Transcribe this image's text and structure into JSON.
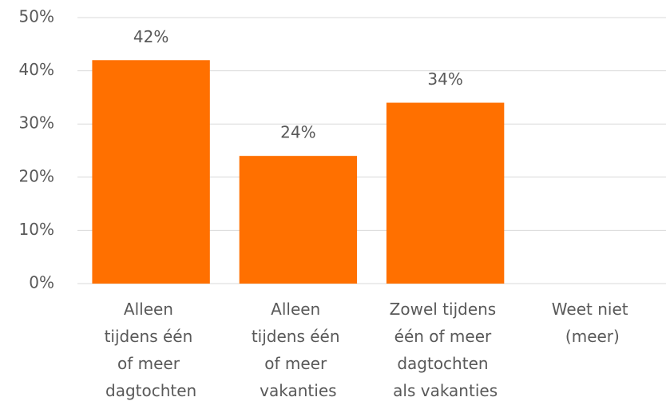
{
  "chart_data": {
    "type": "bar",
    "categories": [
      "Alleen tijdens één of meer dagtochten",
      "Alleen tijdens één of meer vakanties",
      "Zowel tijdens één of meer dagtochten als vakanties",
      "Weet niet (meer)"
    ],
    "values": [
      42,
      24,
      34,
      null
    ],
    "value_labels": [
      "42%",
      "24%",
      "34%",
      null
    ],
    "color": "#ff7000",
    "ylim": [
      0,
      50
    ],
    "yticks": [
      {
        "value": 0,
        "label": "0%"
      },
      {
        "value": 10,
        "label": "10%"
      },
      {
        "value": 20,
        "label": "20%"
      },
      {
        "value": 30,
        "label": "30%"
      },
      {
        "value": 40,
        "label": "40%"
      },
      {
        "value": 50,
        "label": "50%"
      }
    ],
    "grid": true
  }
}
